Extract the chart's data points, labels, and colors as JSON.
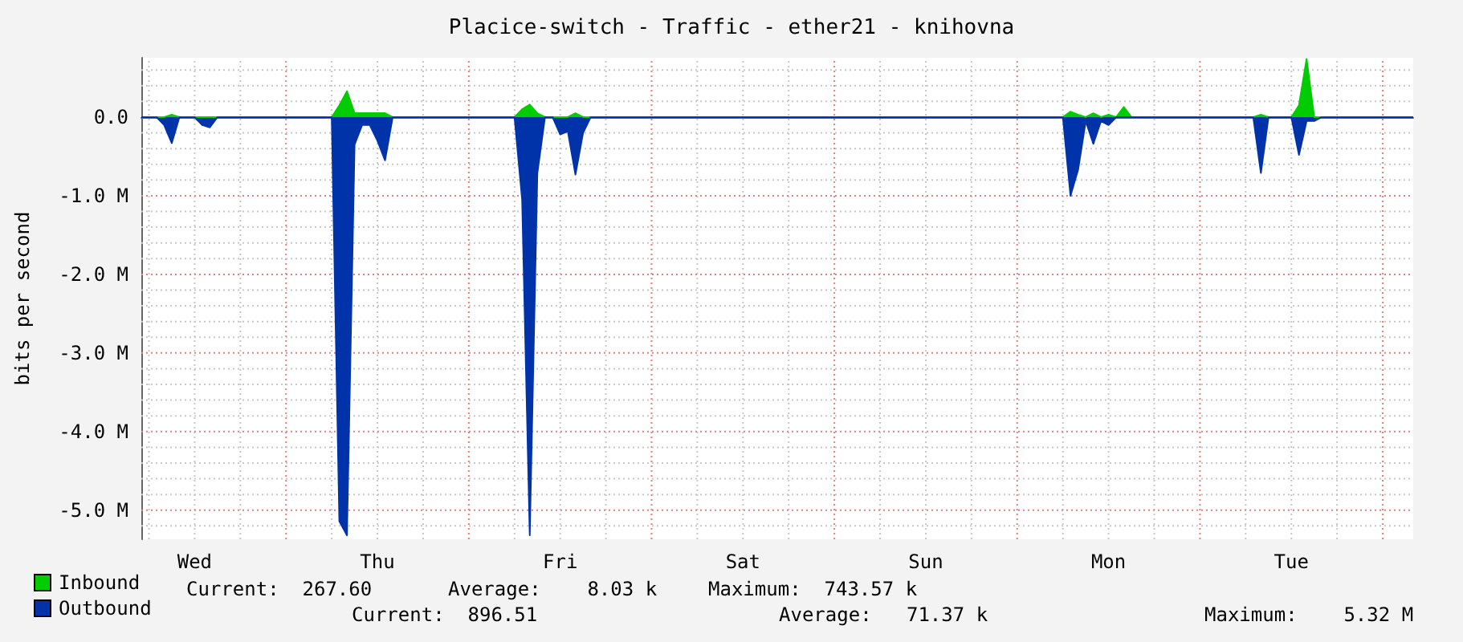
{
  "chart_data": {
    "type": "area",
    "title": "Placice-switch - Traffic - ether21 - knihovna",
    "ylabel": "bits per second",
    "categories": [
      null,
      null,
      null,
      null,
      null,
      null,
      null,
      "Wed",
      null,
      null,
      null,
      null,
      null,
      null,
      null,
      null,
      null,
      null,
      null,
      null,
      null,
      null,
      null,
      null,
      null,
      null,
      null,
      null,
      null,
      null,
      null,
      "Thu",
      null,
      null,
      null,
      null,
      null,
      null,
      null,
      null,
      null,
      null,
      null,
      null,
      null,
      null,
      null,
      null,
      null,
      null,
      null,
      null,
      null,
      null,
      null,
      "Fri",
      null,
      null,
      null,
      null,
      null,
      null,
      null,
      null,
      null,
      null,
      null,
      null,
      null,
      null,
      null,
      null,
      null,
      null,
      null,
      null,
      null,
      null,
      null,
      "Sat",
      null,
      null,
      null,
      null,
      null,
      null,
      null,
      null,
      null,
      null,
      null,
      null,
      null,
      null,
      null,
      null,
      null,
      null,
      null,
      null,
      null,
      null,
      null,
      "Sun",
      null,
      null,
      null,
      null,
      null,
      null,
      null,
      null,
      null,
      null,
      null,
      null,
      null,
      null,
      null,
      null,
      null,
      null,
      null,
      null,
      null,
      null,
      null,
      "Mon",
      null,
      null,
      null,
      null,
      null,
      null,
      null,
      null,
      null,
      null,
      null,
      null,
      null,
      null,
      null,
      null,
      null,
      null,
      null,
      null,
      null,
      null,
      null,
      "Tue",
      null,
      null,
      null,
      null,
      null,
      null,
      null,
      null,
      null,
      null,
      null,
      null,
      null,
      null,
      null,
      null
    ],
    "ylim": [
      -5370000,
      755000
    ],
    "yticks": [
      {
        "value": -5000000,
        "label": "-5.0 M"
      },
      {
        "value": -4000000,
        "label": "-4.0 M"
      },
      {
        "value": -3000000,
        "label": "-3.0 M"
      },
      {
        "value": -2000000,
        "label": "-2.0 M"
      },
      {
        "value": -1000000,
        "label": "-1.0 M"
      },
      {
        "value": 0,
        "label": "0.0"
      }
    ],
    "grid": true,
    "legend": "bottom left",
    "series": [
      {
        "name": "Inbound",
        "color": "#00cc00",
        "values": [
          0,
          0,
          0,
          0,
          30000,
          0,
          0,
          0,
          0,
          0,
          0,
          0,
          0,
          0,
          0,
          0,
          0,
          0,
          0,
          0,
          0,
          0,
          0,
          0,
          0,
          0,
          150000,
          330000,
          50000,
          50000,
          50000,
          50000,
          50000,
          0,
          0,
          0,
          0,
          0,
          0,
          0,
          0,
          0,
          0,
          0,
          0,
          0,
          0,
          0,
          0,
          0,
          100000,
          160000,
          50000,
          0,
          0,
          0,
          0,
          50000,
          0,
          0,
          0,
          0,
          0,
          0,
          0,
          0,
          0,
          0,
          0,
          0,
          0,
          0,
          0,
          0,
          0,
          0,
          0,
          0,
          0,
          0,
          0,
          0,
          0,
          0,
          0,
          0,
          0,
          0,
          0,
          0,
          0,
          0,
          0,
          0,
          0,
          0,
          0,
          0,
          0,
          0,
          0,
          0,
          0,
          0,
          0,
          0,
          0,
          0,
          0,
          0,
          0,
          0,
          0,
          0,
          0,
          0,
          0,
          0,
          0,
          0,
          0,
          0,
          70000,
          30000,
          0,
          50000,
          0,
          30000,
          0,
          130000,
          0,
          0,
          0,
          0,
          0,
          0,
          0,
          0,
          0,
          0,
          0,
          0,
          0,
          0,
          0,
          0,
          0,
          30000,
          0,
          0,
          0,
          0,
          150000,
          740000,
          0,
          0,
          0,
          0,
          0,
          0,
          0,
          0,
          0,
          0,
          0,
          0,
          0,
          0
        ]
      },
      {
        "name": "Outbound",
        "color": "#0033aa",
        "values": [
          0,
          0,
          0,
          -100000,
          -330000,
          0,
          0,
          0,
          -100000,
          -130000,
          0,
          0,
          0,
          0,
          0,
          0,
          0,
          0,
          0,
          0,
          0,
          0,
          0,
          0,
          0,
          0,
          -5140000,
          -5320000,
          -350000,
          -100000,
          -100000,
          -300000,
          -550000,
          0,
          0,
          0,
          0,
          0,
          0,
          0,
          0,
          0,
          0,
          0,
          0,
          0,
          0,
          0,
          0,
          0,
          -1050000,
          -5320000,
          -710000,
          0,
          0,
          -220000,
          -180000,
          -730000,
          -200000,
          0,
          0,
          0,
          0,
          0,
          0,
          0,
          0,
          0,
          0,
          0,
          0,
          0,
          0,
          0,
          0,
          0,
          0,
          0,
          0,
          0,
          0,
          0,
          0,
          0,
          0,
          0,
          0,
          0,
          0,
          0,
          0,
          0,
          0,
          0,
          0,
          0,
          0,
          0,
          0,
          0,
          0,
          0,
          0,
          0,
          0,
          0,
          0,
          0,
          0,
          0,
          0,
          0,
          0,
          0,
          0,
          0,
          0,
          0,
          0,
          0,
          0,
          0,
          -1000000,
          -670000,
          -50000,
          -340000,
          -50000,
          -100000,
          0,
          0,
          0,
          0,
          0,
          0,
          0,
          0,
          0,
          0,
          0,
          0,
          0,
          0,
          0,
          0,
          0,
          0,
          0,
          -710000,
          0,
          0,
          0,
          0,
          -480000,
          -50000,
          -50000,
          0,
          0,
          0,
          0,
          0,
          0,
          0,
          0,
          0,
          0,
          0,
          0,
          0
        ]
      }
    ],
    "annotations": [
      "Current:  267.60",
      "Average:    8.03 k",
      "Maximum:  743.57 k",
      "Current:  896.51",
      "Average:   71.37 k",
      "Maximum:    5.32 M"
    ]
  }
}
